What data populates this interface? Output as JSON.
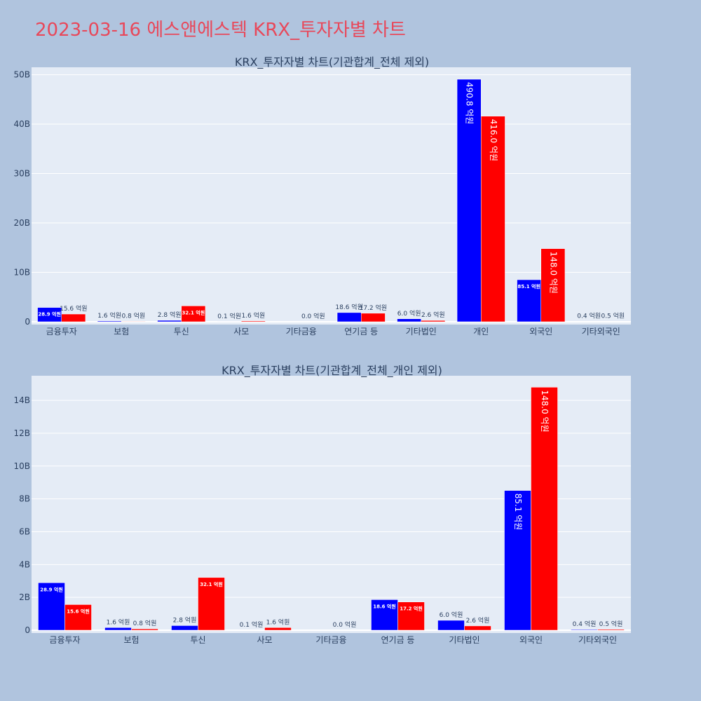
{
  "page": {
    "title": "2023-03-16 에스앤에스텍 KRX_투자자별 차트"
  },
  "colors": {
    "background": "#b0c4de",
    "plot_background": "#e5ecf6",
    "series_a": "#0000ff",
    "series_b": "#ff0000",
    "title": "#e8485a",
    "text": "#2a3f5f"
  },
  "chart_data": [
    {
      "type": "bar",
      "title": "KRX_투자자별 차트(기관합계_전체 제외)",
      "categories": [
        "금융투자",
        "보험",
        "투신",
        "사모",
        "기타금융",
        "연기금 등",
        "기타법인",
        "개인",
        "외국인",
        "기타외국인"
      ],
      "ytick_labels": [
        "0",
        "10B",
        "20B",
        "30B",
        "40B",
        "50B"
      ],
      "ylim": [
        0,
        51500000000
      ],
      "series": [
        {
          "color": "#0000ff",
          "values": [
            2890000000,
            160000000,
            280000000,
            10000000,
            0,
            1860000000,
            600000000,
            49080000000,
            8510000000,
            40000000
          ],
          "labels": [
            "28.9 억원",
            "1.6 억원",
            "2.8 억원",
            "0.1 억원",
            "",
            "18.6 억원",
            "6.0 억원",
            "490.8 억원",
            "85.1 억원",
            "0.4 억원"
          ]
        },
        {
          "color": "#ff0000",
          "values": [
            1560000000,
            80000000,
            3210000000,
            160000000,
            0,
            1720000000,
            260000000,
            41600000000,
            14800000000,
            50000000
          ],
          "labels": [
            "15.6 억원",
            "0.8 억원",
            "32.1 억원",
            "1.6 억원",
            "0.0 억원",
            "17.2 억원",
            "2.6 억원",
            "416.0 억원",
            "148.0 억원",
            "0.5 억원"
          ]
        }
      ]
    },
    {
      "type": "bar",
      "title": "KRX_투자자별 차트(기관합계_전체_개인 제외)",
      "categories": [
        "금융투자",
        "보험",
        "투신",
        "사모",
        "기타금융",
        "연기금 등",
        "기타법인",
        "외국인",
        "기타외국인"
      ],
      "ytick_labels": [
        "0",
        "2B",
        "4B",
        "6B",
        "8B",
        "10B",
        "12B",
        "14B"
      ],
      "ylim": [
        0,
        15500000000
      ],
      "series": [
        {
          "color": "#0000ff",
          "values": [
            2890000000,
            160000000,
            280000000,
            10000000,
            0,
            1860000000,
            600000000,
            8510000000,
            40000000
          ],
          "labels": [
            "28.9 억원",
            "1.6 억원",
            "2.8 억원",
            "0.1 억원",
            "",
            "18.6 억원",
            "6.0 억원",
            "85.1 억원",
            "0.4 억원"
          ]
        },
        {
          "color": "#ff0000",
          "values": [
            1560000000,
            80000000,
            3210000000,
            160000000,
            0,
            1720000000,
            260000000,
            14800000000,
            50000000
          ],
          "labels": [
            "15.6 억원",
            "0.8 억원",
            "32.1 억원",
            "1.6 억원",
            "0.0 억원",
            "17.2 억원",
            "2.6 억원",
            "148.0 억원",
            "0.5 억원"
          ]
        }
      ]
    }
  ]
}
